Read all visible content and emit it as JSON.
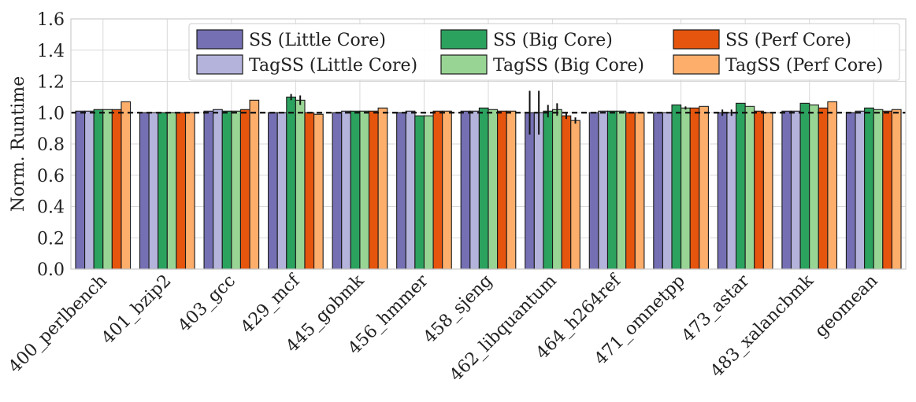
{
  "chart_data": {
    "type": "bar",
    "title": "",
    "xlabel": "",
    "ylabel": "Norm. Runtime",
    "ylim": [
      0.0,
      1.6
    ],
    "yticks": [
      "0.0",
      "0.2",
      "0.4",
      "0.6",
      "0.8",
      "1.0",
      "1.2",
      "1.4",
      "1.6"
    ],
    "grid": true,
    "reference_line": 1.0,
    "legend_position": "top-right",
    "categories": [
      "400_perlbench",
      "401_bzip2",
      "403_gcc",
      "429_mcf",
      "445_gobmk",
      "456_hmmer",
      "458_sjeng",
      "462_libquantum",
      "464_h264ref",
      "471_omnetpp",
      "473_astar",
      "483_xalancbmk",
      "geomean"
    ],
    "series": [
      {
        "name": "SS (Little Core)",
        "color": "#7570b3",
        "values": [
          1.01,
          1.0,
          1.01,
          1.0,
          1.0,
          1.0,
          1.01,
          1.0,
          1.0,
          1.0,
          1.0,
          1.01,
          1.0
        ],
        "errors": [
          0.0,
          0.0,
          0.0,
          0.0,
          0.0,
          0.0,
          0.0,
          0.14,
          0.0,
          0.0,
          0.02,
          0.0,
          0.0
        ]
      },
      {
        "name": "TagSS (Little Core)",
        "color": "#b3b3dc",
        "values": [
          1.01,
          1.0,
          1.02,
          1.0,
          1.01,
          1.01,
          1.01,
          1.0,
          1.01,
          1.0,
          1.0,
          1.01,
          1.01
        ],
        "errors": [
          0.0,
          0.0,
          0.0,
          0.0,
          0.0,
          0.0,
          0.0,
          0.14,
          0.0,
          0.0,
          0.02,
          0.0,
          0.0
        ]
      },
      {
        "name": "SS (Big Core)",
        "color": "#2ca25f",
        "values": [
          1.02,
          1.0,
          1.01,
          1.1,
          1.01,
          0.98,
          1.03,
          1.01,
          1.01,
          1.05,
          1.06,
          1.06,
          1.03
        ],
        "errors": [
          0.0,
          0.0,
          0.0,
          0.02,
          0.0,
          0.0,
          0.0,
          0.04,
          0.0,
          0.0,
          0.0,
          0.0,
          0.0
        ]
      },
      {
        "name": "TagSS (Big Core)",
        "color": "#98d594",
        "values": [
          1.02,
          1.0,
          1.01,
          1.08,
          1.01,
          0.98,
          1.02,
          1.02,
          1.01,
          1.03,
          1.04,
          1.05,
          1.02
        ],
        "errors": [
          0.0,
          0.0,
          0.0,
          0.03,
          0.0,
          0.0,
          0.0,
          0.04,
          0.0,
          0.01,
          0.0,
          0.0,
          0.0
        ]
      },
      {
        "name": "SS (Perf Core)",
        "color": "#e6550d",
        "values": [
          1.02,
          1.0,
          1.02,
          1.0,
          1.01,
          1.01,
          1.01,
          0.98,
          1.0,
          1.03,
          1.01,
          1.03,
          1.01
        ],
        "errors": [
          0.0,
          0.0,
          0.0,
          0.0,
          0.0,
          0.0,
          0.0,
          0.02,
          0.0,
          0.0,
          0.0,
          0.0,
          0.0
        ]
      },
      {
        "name": "TagSS (Perf Core)",
        "color": "#fdae6b",
        "values": [
          1.07,
          1.0,
          1.08,
          0.99,
          1.03,
          1.01,
          1.01,
          0.95,
          1.0,
          1.04,
          1.0,
          1.07,
          1.02
        ],
        "errors": [
          0.0,
          0.0,
          0.0,
          0.0,
          0.0,
          0.0,
          0.0,
          0.02,
          0.0,
          0.0,
          0.0,
          0.0,
          0.0
        ]
      }
    ]
  }
}
